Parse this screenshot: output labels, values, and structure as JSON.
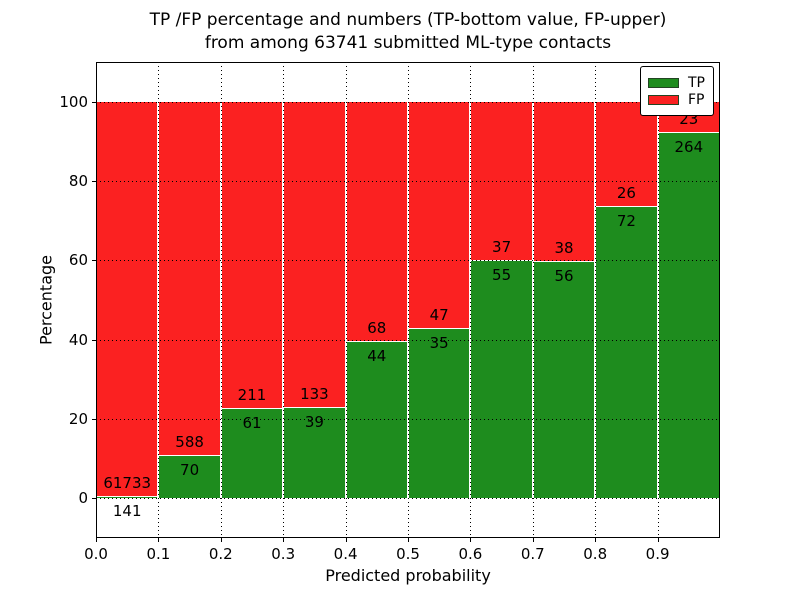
{
  "figure": {
    "title_line1": "TP /FP percentage and numbers (TP-bottom value, FP-upper)",
    "title_line2": "from among 63741 submitted ML-type contacts"
  },
  "chart_data": {
    "type": "bar",
    "subtype": "stacked-percentage",
    "title": "TP /FP percentage and numbers (TP-bottom value, FP-upper)\nfrom among 63741 submitted ML-type contacts",
    "xlabel": "Predicted probability",
    "ylabel": "Percentage",
    "total_contacts": 63741,
    "grid": "dotted",
    "legend_position": "upper right",
    "xlim": [
      0.0,
      1.0
    ],
    "ylim": [
      -10,
      110
    ],
    "x_ticks": [
      "0.0",
      "0.1",
      "0.2",
      "0.3",
      "0.4",
      "0.5",
      "0.6",
      "0.7",
      "0.8",
      "0.9"
    ],
    "y_ticks": [
      "0",
      "20",
      "40",
      "60",
      "80",
      "100"
    ],
    "y_tick_values": [
      0,
      20,
      40,
      60,
      80,
      100
    ],
    "bin_width": 0.1,
    "categories": [
      "0.0-0.1",
      "0.1-0.2",
      "0.2-0.3",
      "0.3-0.4",
      "0.4-0.5",
      "0.5-0.6",
      "0.6-0.7",
      "0.7-0.8",
      "0.8-0.9",
      "0.9-1.0"
    ],
    "series": [
      {
        "name": "TP",
        "color": "#1e8c1e",
        "values": [
          141,
          70,
          61,
          39,
          44,
          35,
          55,
          56,
          72,
          264
        ]
      },
      {
        "name": "FP",
        "color": "#fb2121",
        "values": [
          61733,
          588,
          211,
          133,
          68,
          47,
          37,
          38,
          26,
          23
        ]
      }
    ],
    "legend": [
      {
        "label": "TP",
        "color": "#1e8c1e"
      },
      {
        "label": "FP",
        "color": "#fb2121"
      }
    ],
    "bins": [
      {
        "x_start": 0.0,
        "tp": 141,
        "fp": 61733,
        "tp_pct": 0.23
      },
      {
        "x_start": 0.1,
        "tp": 70,
        "fp": 588,
        "tp_pct": 10.64
      },
      {
        "x_start": 0.2,
        "tp": 61,
        "fp": 211,
        "tp_pct": 22.43
      },
      {
        "x_start": 0.3,
        "tp": 39,
        "fp": 133,
        "tp_pct": 22.67
      },
      {
        "x_start": 0.4,
        "tp": 44,
        "fp": 68,
        "tp_pct": 39.29
      },
      {
        "x_start": 0.5,
        "tp": 35,
        "fp": 47,
        "tp_pct": 42.68
      },
      {
        "x_start": 0.6,
        "tp": 55,
        "fp": 37,
        "tp_pct": 59.78
      },
      {
        "x_start": 0.7,
        "tp": 56,
        "fp": 38,
        "tp_pct": 59.57
      },
      {
        "x_start": 0.8,
        "tp": 72,
        "fp": 26,
        "tp_pct": 73.47
      },
      {
        "x_start": 0.9,
        "tp": 264,
        "fp": 23,
        "tp_pct": 91.99
      }
    ]
  }
}
